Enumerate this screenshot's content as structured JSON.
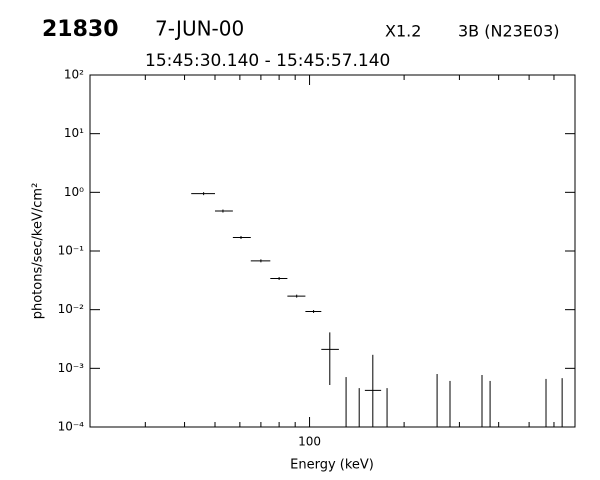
{
  "chart_data": {
    "type": "errorbar",
    "title": "21830",
    "date": "7-JUN-00",
    "class": "X1.2",
    "region": "3B (N23E03)",
    "subtitle": "15:45:30.140 - 15:45:57.140",
    "x_label": "Energy (keV)",
    "y_label": "photons/sec/keV/cm²",
    "log_x": true,
    "log_y": true,
    "color": "#000000",
    "xlim": [
      20,
      700
    ],
    "ylim": [
      0.0001,
      100
    ],
    "xticks": [
      100
    ],
    "xminorticks": [
      30,
      40,
      50,
      60,
      70,
      80,
      90,
      200,
      300,
      400,
      500,
      600
    ],
    "yticks": [
      {
        "value": 0.0001,
        "label": "10⁻⁴"
      },
      {
        "value": 0.001,
        "label": "10⁻³"
      },
      {
        "value": 0.01,
        "label": "10⁻²"
      },
      {
        "value": 0.1,
        "label": "10⁻¹"
      },
      {
        "value": 1,
        "label": "10⁰"
      },
      {
        "value": 10,
        "label": "10¹"
      },
      {
        "value": 100,
        "label": "10²"
      }
    ],
    "x": [
      46,
      53,
      60.5,
      70,
      80,
      91,
      103,
      116,
      130.7,
      143.9,
      159,
      176.5,
      254.7,
      280,
      354,
      375.6,
      566,
      637
    ],
    "x_low": [
      42,
      50,
      57,
      65,
      75,
      85,
      97,
      109,
      null,
      null,
      150,
      null,
      null,
      null,
      null,
      null,
      null,
      null
    ],
    "x_high": [
      50,
      57,
      65,
      75,
      85,
      97,
      109,
      124,
      null,
      null,
      169,
      null,
      null,
      null,
      null,
      null,
      null,
      null
    ],
    "values": [
      0.95,
      0.48,
      0.17,
      0.068,
      0.034,
      0.017,
      0.0093,
      0.0021,
      null,
      null,
      0.00042,
      null,
      null,
      null,
      null,
      null,
      null,
      null
    ],
    "y_high": [
      null,
      null,
      null,
      null,
      null,
      null,
      null,
      0.0041,
      0.00071,
      0.00046,
      0.0017,
      0.00046,
      0.0008,
      0.00061,
      0.00077,
      0.00061,
      0.00066,
      0.00068
    ],
    "y_low": [
      null,
      null,
      null,
      null,
      null,
      null,
      null,
      0.00052,
      null,
      null,
      null,
      null,
      null,
      null,
      null,
      null,
      null,
      null
    ]
  }
}
